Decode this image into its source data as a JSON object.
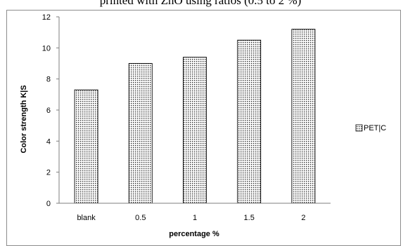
{
  "chart_data": {
    "type": "bar",
    "title": "printed with ZnO using ratios (0.5 to 2 %)",
    "xlabel": "percentage %",
    "ylabel": "Color strength K|S",
    "categories": [
      "blank",
      "0.5",
      "1",
      "1.5",
      "2"
    ],
    "series": [
      {
        "name": "PET|C",
        "values": [
          7.3,
          9.0,
          9.4,
          10.5,
          11.2
        ]
      }
    ],
    "ylim": [
      0,
      12
    ],
    "yticks": [
      0,
      2,
      4,
      6,
      8,
      10,
      12
    ],
    "grid": false,
    "legend_position": "right",
    "colors": {
      "bar_fill": "#ffffff",
      "bar_pattern": "#333333",
      "bar_stroke": "#000000",
      "axis": "#7f7f7f",
      "frame": "#8c8c8c"
    }
  }
}
